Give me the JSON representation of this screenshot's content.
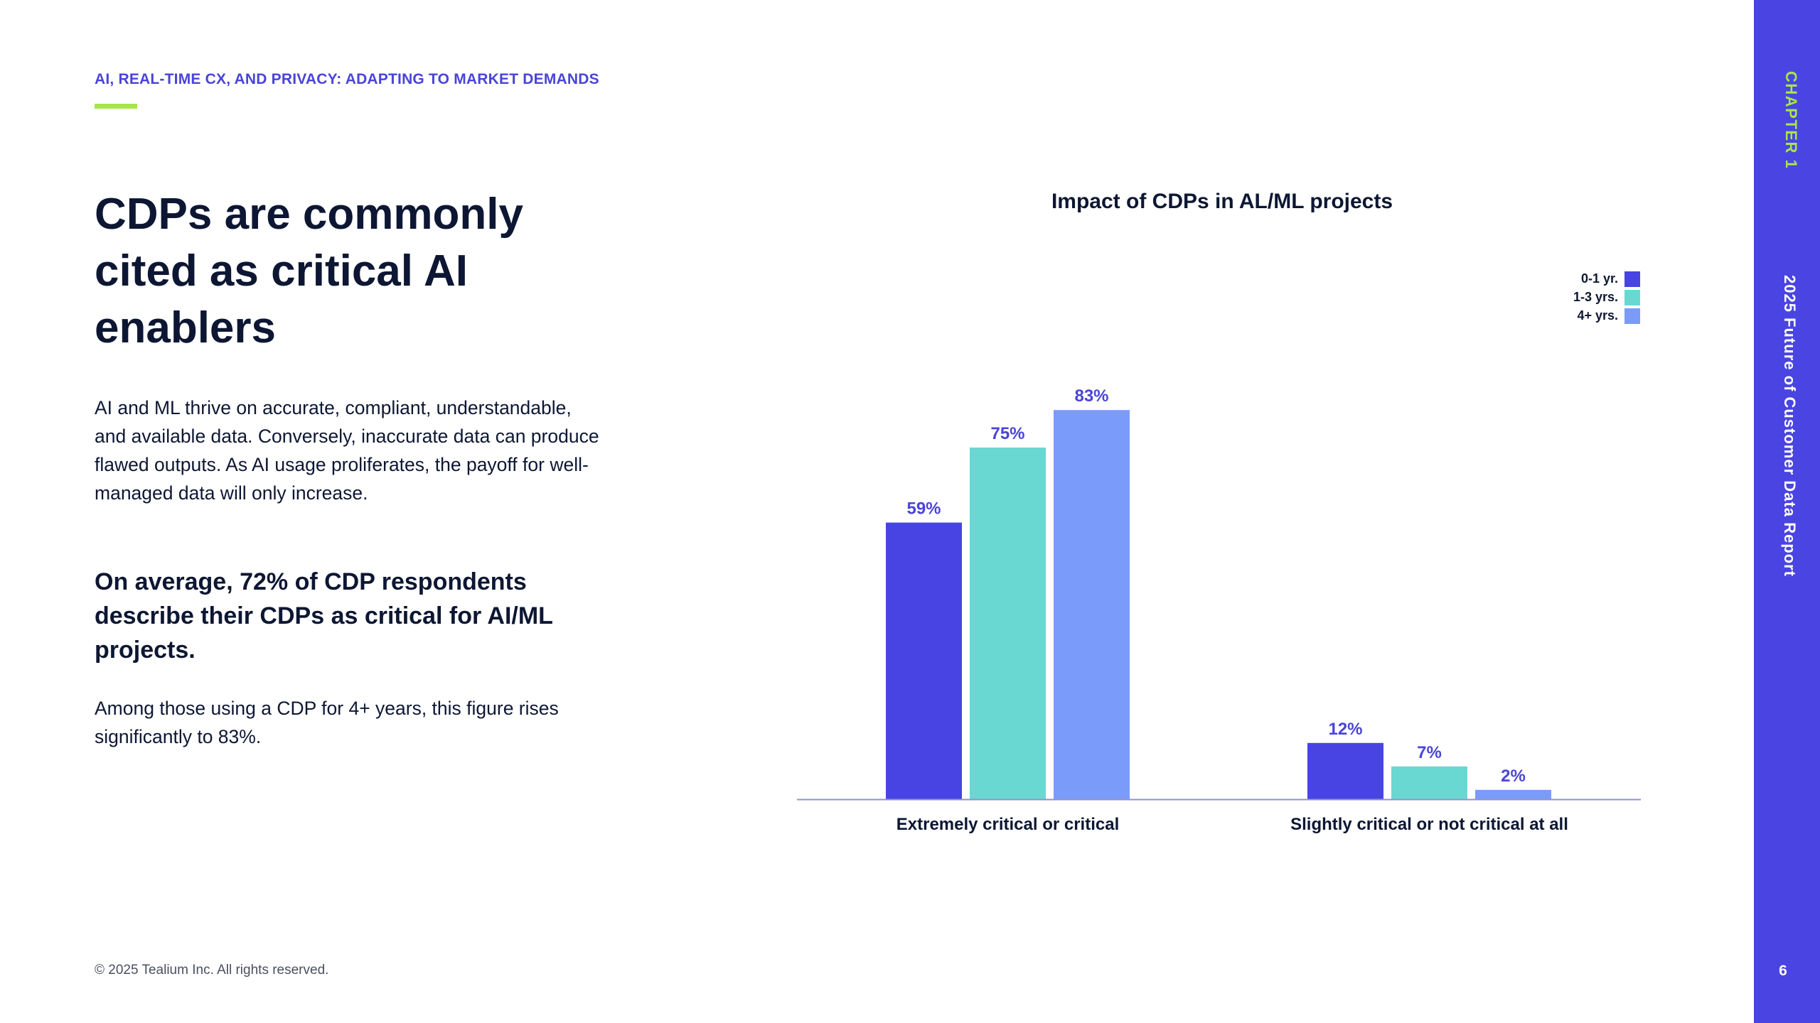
{
  "header": {
    "kicker": "AI, REAL-TIME CX, AND PRIVACY: ADAPTING TO MARKET DEMANDS"
  },
  "main": {
    "headline": "CDPs are commonly cited as critical AI enablers",
    "body": "AI and ML thrive on accurate, compliant, understandable, and available data. Conversely, inaccurate data can produce flawed outputs. As AI usage proliferates, the payoff for well-managed data will only increase.",
    "callout": "On average, 72% of CDP respondents describe their CDPs as critical for AI/ML projects.",
    "supporting": "Among those using a CDP for 4+ years, this figure rises significantly to 83%."
  },
  "footer": {
    "copyright": "© 2025 Tealium Inc. All rights reserved."
  },
  "sidebar": {
    "chapter": "CHAPTER 1",
    "report": "2025 Future of Customer Data Report",
    "page_number": "6"
  },
  "colors": {
    "accent": "#4a44d8",
    "sidebar": "#4a44e2",
    "lime": "#a6e64a",
    "text": "#0d1733"
  },
  "chart_data": {
    "type": "bar",
    "title": "Impact of CDPs in AL/ML projects",
    "categories": [
      "Extremely critical or critical",
      "Slightly critical or not critical at all"
    ],
    "series": [
      {
        "name": "0-1 yr.",
        "values": [
          59,
          12
        ],
        "color": "#4744e3"
      },
      {
        "name": "1-3 yrs.",
        "values": [
          75,
          7
        ],
        "color": "#69d8d3"
      },
      {
        "name": "4+ yrs.",
        "values": [
          83,
          2
        ],
        "color": "#7b9bfa"
      }
    ],
    "value_suffix": "%",
    "ylim": [
      0,
      100
    ],
    "xlabel": "",
    "ylabel": "",
    "grid": false,
    "legend_position": "top-right"
  }
}
